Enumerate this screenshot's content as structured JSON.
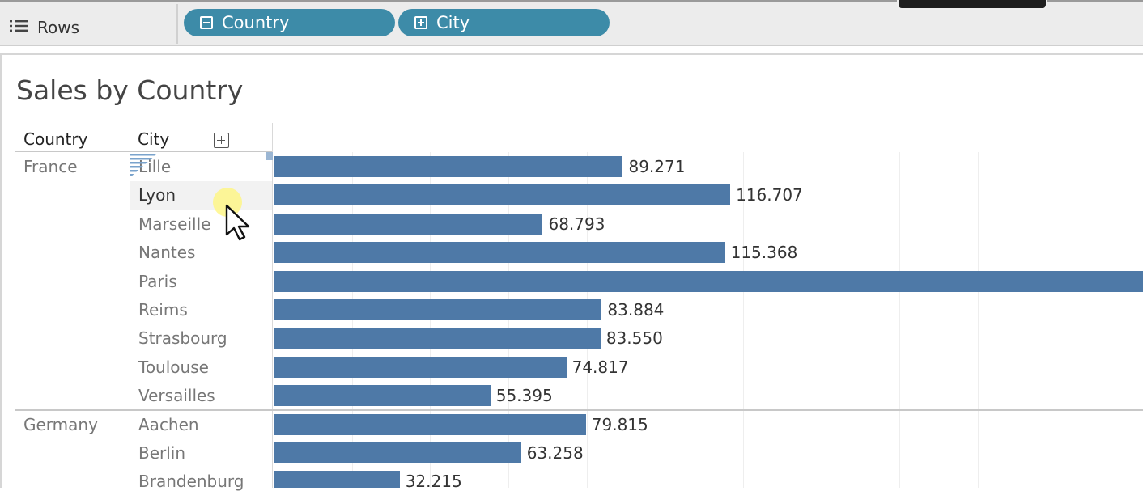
{
  "shelf": {
    "rows_label": "Rows",
    "pills": [
      {
        "label": "Country",
        "icon": "collapse-icon",
        "expanded": true
      },
      {
        "label": "City",
        "icon": "expand-icon",
        "expanded": false
      }
    ]
  },
  "colors": {
    "bar": "#4e79a7",
    "pill": "#3d8ba8",
    "cursor_highlight": "#fff478"
  },
  "chart_data": {
    "type": "bar",
    "orientation": "horizontal",
    "title": "Sales by Country",
    "column_headers": [
      "Country",
      "City"
    ],
    "xlim": [
      0,
      185
    ],
    "grid": true,
    "groups": [
      {
        "country": "France",
        "cities": [
          {
            "name": "Lille",
            "value": 89.271,
            "label": "89.271"
          },
          {
            "name": "Lyon",
            "value": 116.707,
            "label": "116.707"
          },
          {
            "name": "Marseille",
            "value": 68.793,
            "label": "68.793"
          },
          {
            "name": "Nantes",
            "value": 115.368,
            "label": "115.368"
          },
          {
            "name": "Paris",
            "value": 230,
            "label": ""
          },
          {
            "name": "Reims",
            "value": 83.884,
            "label": "83.884"
          },
          {
            "name": "Strasbourg",
            "value": 83.55,
            "label": "83.550"
          },
          {
            "name": "Toulouse",
            "value": 74.817,
            "label": "74.817"
          },
          {
            "name": "Versailles",
            "value": 55.395,
            "label": "55.395"
          }
        ]
      },
      {
        "country": "Germany",
        "cities": [
          {
            "name": "Aachen",
            "value": 79.815,
            "label": "79.815"
          },
          {
            "name": "Berlin",
            "value": 63.258,
            "label": "63.258"
          },
          {
            "name": "Brandenburg",
            "value": 32.215,
            "label": "32.215"
          }
        ]
      }
    ]
  }
}
